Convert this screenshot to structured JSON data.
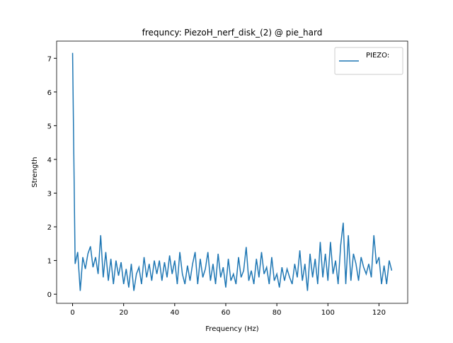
{
  "chart_data": {
    "type": "line",
    "title": "frequncy: PiezoH_nerf_disk_(2) @ pie_hard",
    "x_label": "Frequency (Hz)",
    "y_label": "Strength",
    "x": [
      0,
      1,
      2,
      3,
      4,
      5,
      6,
      7,
      8,
      9,
      10,
      11,
      12,
      13,
      14,
      15,
      16,
      17,
      18,
      19,
      20,
      21,
      22,
      23,
      24,
      25,
      26,
      27,
      28,
      29,
      30,
      31,
      32,
      33,
      34,
      35,
      36,
      37,
      38,
      39,
      40,
      41,
      42,
      43,
      44,
      45,
      46,
      47,
      48,
      49,
      50,
      51,
      52,
      53,
      54,
      55,
      56,
      57,
      58,
      59,
      60,
      61,
      62,
      63,
      64,
      65,
      66,
      67,
      68,
      69,
      70,
      71,
      72,
      73,
      74,
      75,
      76,
      77,
      78,
      79,
      80,
      81,
      82,
      83,
      84,
      85,
      86,
      87,
      88,
      89,
      90,
      91,
      92,
      93,
      94,
      95,
      96,
      97,
      98,
      99,
      100,
      101,
      102,
      103,
      104,
      105,
      106,
      107,
      108,
      109,
      110,
      111,
      112,
      113,
      114,
      115,
      116,
      117,
      118,
      119,
      120,
      121,
      122,
      123,
      124,
      125
    ],
    "series": [
      {
        "name": "PIEZO:",
        "color": "#1f77b4",
        "values": [
          7.16,
          0.9,
          1.25,
          0.1,
          1.1,
          0.75,
          1.2,
          1.42,
          0.8,
          1.1,
          0.6,
          1.75,
          0.5,
          1.25,
          0.4,
          1.05,
          0.3,
          1.0,
          0.55,
          0.95,
          0.3,
          0.75,
          0.2,
          0.9,
          0.1,
          0.6,
          0.8,
          0.3,
          1.1,
          0.5,
          0.9,
          0.4,
          1.0,
          0.6,
          1.0,
          0.4,
          0.95,
          0.5,
          1.15,
          0.6,
          1.0,
          0.3,
          1.25,
          0.6,
          0.3,
          0.85,
          0.4,
          0.9,
          1.25,
          0.3,
          1.05,
          0.5,
          0.75,
          1.25,
          0.4,
          0.9,
          0.3,
          1.2,
          0.5,
          0.8,
          0.2,
          1.05,
          0.4,
          0.6,
          0.3,
          1.1,
          0.5,
          0.7,
          1.4,
          0.4,
          0.7,
          0.3,
          1.05,
          0.5,
          1.25,
          0.6,
          0.8,
          0.3,
          1.1,
          0.4,
          0.6,
          0.2,
          0.8,
          0.4,
          0.75,
          0.5,
          0.3,
          0.9,
          0.5,
          1.3,
          0.4,
          0.9,
          0.1,
          1.2,
          0.5,
          1.05,
          0.3,
          1.55,
          0.5,
          1.2,
          0.4,
          1.55,
          0.6,
          1.0,
          0.3,
          1.45,
          2.12,
          0.3,
          1.75,
          0.4,
          1.2,
          0.9,
          0.4,
          1.1,
          0.8,
          0.6,
          0.9,
          0.5,
          1.75,
          0.9,
          1.1,
          0.3,
          0.85,
          0.3,
          1.0,
          0.7
        ]
      }
    ],
    "xlim": [
      -6.25,
      131.25
    ],
    "ylim": [
      -0.27,
      7.51
    ],
    "xticks": [
      0,
      20,
      40,
      60,
      80,
      100,
      120
    ],
    "yticks": [
      0,
      1,
      2,
      3,
      4,
      5,
      6,
      7
    ],
    "legend": "upper right"
  }
}
